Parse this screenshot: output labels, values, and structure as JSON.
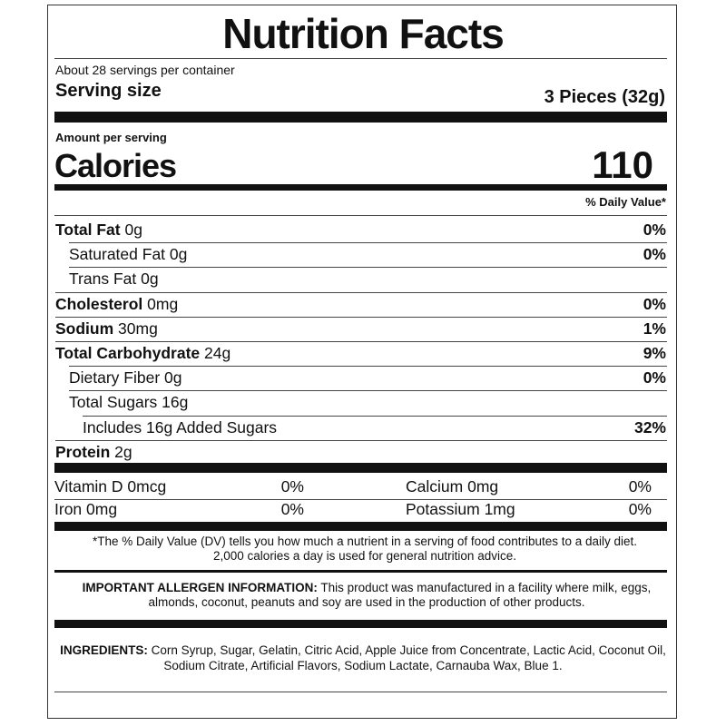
{
  "title": "Nutrition Facts",
  "servings": "About 28 servings per container",
  "serving_size_label": "Serving size",
  "serving_size": "3 Pieces (32g)",
  "amount_per_serving": "Amount per serving",
  "calories_label": "Calories",
  "calories": "110",
  "daily_value_header": "% Daily Value*",
  "nutrients": [
    {
      "name": "Total Fat",
      "amount": "0g",
      "dv": "0%"
    },
    {
      "name": "Saturated Fat",
      "amount": "0g",
      "dv": "0%"
    },
    {
      "name": "Trans Fat",
      "amount": "0g"
    },
    {
      "name": "Cholesterol",
      "amount": "0mg",
      "dv": "0%"
    },
    {
      "name": "Sodium",
      "amount": "30mg",
      "dv": "1%"
    },
    {
      "name": "Total Carbohydrate",
      "amount": "24g",
      "dv": "9%"
    },
    {
      "name": "Dietary Fiber",
      "amount": "0g",
      "dv": "0%"
    },
    {
      "name": "Total Sugars",
      "amount": "16g"
    },
    {
      "name": "Includes 16g Added Sugars",
      "dv": "32%"
    },
    {
      "name": "Protein",
      "amount": "2g"
    }
  ],
  "vitamins": [
    {
      "name": "Vitamin D",
      "amount": "0mcg",
      "dv": "0%"
    },
    {
      "name": "Calcium",
      "amount": "0mg",
      "dv": "0%"
    },
    {
      "name": "Iron",
      "amount": "0mg",
      "dv": "0%"
    },
    {
      "name": "Potassium",
      "amount": "1mg",
      "dv": "0%"
    }
  ],
  "footnote": [
    "*The % Daily Value (DV) tells you how much a nutrient in a serving of food contributes to a daily diet.",
    "2,000 calories a day is used for general nutrition advice."
  ],
  "allergen": {
    "label": "IMPORTANT ALLERGEN INFORMATION:",
    "text": "This product was manufactured in a facility where milk, eggs, almonds, coconut, peanuts and soy are used in the production of other products."
  },
  "ingredients": {
    "label": "INGREDIENTS:",
    "text": "Corn Syrup, Sugar, Gelatin, Citric Acid, Apple Juice from Concentrate, Lactic Acid, Coconut Oil, Sodium Citrate, Artificial Flavors, Sodium Lactate, Carnauba Wax, Blue 1."
  }
}
